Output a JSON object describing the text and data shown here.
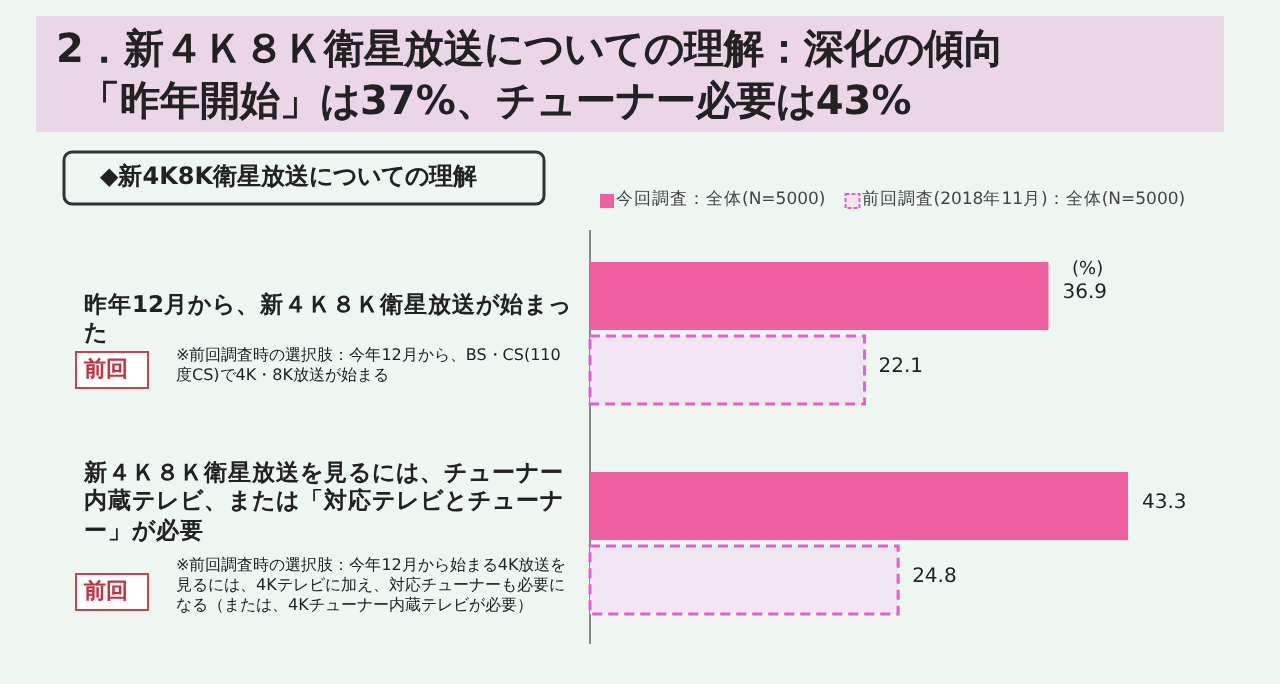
{
  "chart_data": {
    "type": "bar",
    "orientation": "horizontal",
    "title": "2．新４Ｋ８Ｋ衛星放送についての理解：深化の傾向",
    "subtitle": "「昨年開始」は37%、チューナー必要は43%",
    "categories": [
      "昨年12月から、新４Ｋ８Ｋ衛星放送が始まった",
      "新４Ｋ８Ｋ衛星放送を見るには、チューナー内蔵テレビ、または「対応テレビとチューナー」が必要"
    ],
    "series": [
      {
        "name": "今回調査：全体(N=5000)",
        "color": "#ee5fa0",
        "values": [
          36.9,
          43.3
        ]
      },
      {
        "name": "前回調査(2018年11月)：全体(N=5000)",
        "color": "#efe6f2",
        "line_style": "dashed",
        "values": [
          22.1,
          24.8
        ]
      }
    ],
    "data_labels": true,
    "legend": "top",
    "annotations": [
      "◆新4K8K衛星放送についての理解",
      "(%)",
      "前回",
      "※前回調査時の選択肢：今年12月から、BS・CS(110度CS)で4K・8K放送が始まる",
      "前回",
      "※前回調査時の選択肢：今年12月から始まる4K放送を見るには、4Kテレビに加え、対応チューナーも必要になる（または、4Kチューナー内蔵テレビが必要）"
    ]
  }
}
